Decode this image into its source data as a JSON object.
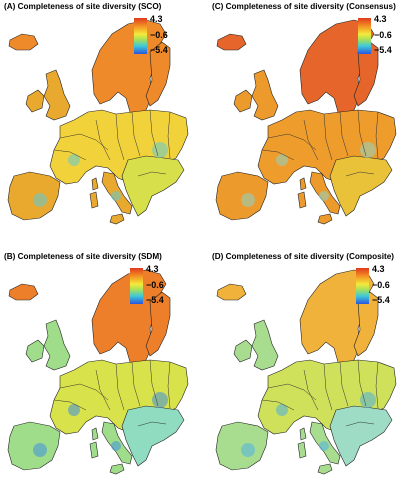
{
  "panels": [
    {
      "id": "A",
      "title": "(A) Completeness of site diversity (SCO)",
      "legend": {
        "max": "4.3",
        "mid": "−0.6",
        "min": "−5.4"
      },
      "palette": {
        "north": "#ef8a2a",
        "central": "#f2d23a",
        "south": "#e9a82e",
        "east": "#d7e04a",
        "accent": "#5fc9d6"
      }
    },
    {
      "id": "C",
      "title": "(C) Completeness of site diversity (Consensus)",
      "legend": {
        "max": "4.3",
        "mid": "−0.6",
        "min": "−5.4"
      },
      "palette": {
        "north": "#e5652a",
        "central": "#ee9c2c",
        "south": "#ec9a2b",
        "east": "#e9c23a",
        "accent": "#8fd6c9"
      }
    },
    {
      "id": "B",
      "title": "(B) Completeness of site diversity (SDM)",
      "legend": {
        "max": "4.3",
        "mid": "−0.6",
        "min": "−5.4"
      },
      "palette": {
        "north": "#ee7f2a",
        "central": "#d8e24a",
        "south": "#9fdd8a",
        "east": "#8fdcc0",
        "accent": "#3f8fe0"
      }
    },
    {
      "id": "D",
      "title": "(D) Completeness of site diversity (Composite)",
      "legend": {
        "max": "4.3",
        "mid": "−0.6",
        "min": "−5.4"
      },
      "palette": {
        "north": "#f0b23a",
        "central": "#cfe05a",
        "south": "#a8dd90",
        "east": "#9fdcc6",
        "accent": "#4fb0e0"
      }
    }
  ]
}
